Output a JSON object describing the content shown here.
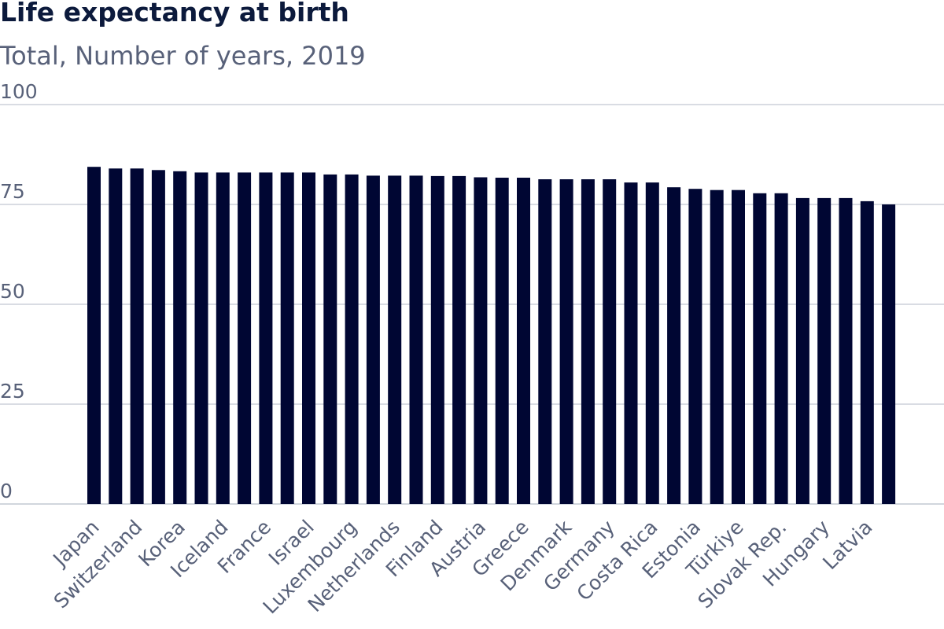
{
  "chart_data": {
    "type": "bar",
    "title": "Life expectancy at birth",
    "subtitle": "Total, Number of years, 2019",
    "ylim": [
      0,
      100
    ],
    "yticks": [
      0,
      25,
      50,
      75,
      100
    ],
    "grid": true,
    "bar_color": "#000633",
    "grid_color": "#c2c8d2",
    "categories": [
      "Japan",
      "",
      "Switzerland",
      "",
      "Korea",
      "",
      "Iceland",
      "",
      "France",
      "",
      "Israel",
      "",
      "Luxembourg",
      "",
      "Netherlands",
      "",
      "Finland",
      "",
      "Austria",
      "",
      "Greece",
      "",
      "Denmark",
      "",
      "Germany",
      "",
      "Costa Rica",
      "",
      "Estonia",
      "",
      "Türkiye",
      "",
      "Slovak Rep.",
      "",
      "Hungary",
      "",
      "Latvia",
      ""
    ],
    "values": [
      84.4,
      84.0,
      84.0,
      83.6,
      83.3,
      83.0,
      83.0,
      83.0,
      83.0,
      83.0,
      83.0,
      82.5,
      82.5,
      82.2,
      82.2,
      82.2,
      82.1,
      82.1,
      81.8,
      81.7,
      81.7,
      81.3,
      81.3,
      81.3,
      81.3,
      80.5,
      80.5,
      79.3,
      78.9,
      78.6,
      78.6,
      77.8,
      77.8,
      76.6,
      76.6,
      76.6,
      75.8,
      75.0
    ]
  }
}
